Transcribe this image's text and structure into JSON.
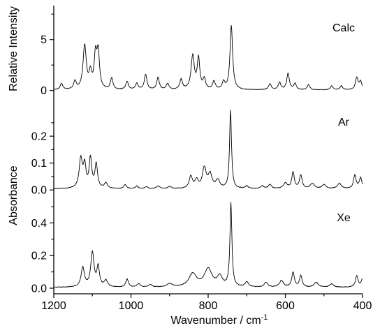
{
  "chart_data": {
    "type": "line",
    "xlabel": "Wavenumber / cm",
    "xlabel_superscript": "-1",
    "xlim": [
      1200,
      400
    ],
    "x_direction": "descending",
    "x_ticks": [
      1200,
      1000,
      800,
      600,
      400
    ],
    "grid": false,
    "panels": [
      {
        "id": "calc",
        "label": "Calc",
        "ylabel": "Relative Intensity",
        "ylim": [
          -0.5,
          8.2
        ],
        "y_ticks": [
          0,
          5
        ],
        "baseline": 0.05,
        "peaks": [
          [
            1180,
            0.6,
            4
          ],
          [
            1145,
            0.8,
            4
          ],
          [
            1120,
            4.3,
            5
          ],
          [
            1105,
            1.5,
            4
          ],
          [
            1092,
            3.2,
            4
          ],
          [
            1085,
            3.5,
            4
          ],
          [
            1050,
            1.1,
            4
          ],
          [
            1010,
            0.8,
            4
          ],
          [
            985,
            0.6,
            4
          ],
          [
            962,
            1.5,
            4
          ],
          [
            930,
            1.2,
            4
          ],
          [
            905,
            0.6,
            4
          ],
          [
            870,
            1.0,
            4
          ],
          [
            840,
            3.3,
            5
          ],
          [
            825,
            3.0,
            4
          ],
          [
            810,
            1.0,
            4
          ],
          [
            785,
            0.8,
            4
          ],
          [
            760,
            0.7,
            4
          ],
          [
            740,
            6.3,
            4
          ],
          [
            640,
            0.6,
            4
          ],
          [
            615,
            0.7,
            4
          ],
          [
            593,
            1.6,
            4
          ],
          [
            575,
            0.6,
            4
          ],
          [
            540,
            0.5,
            4
          ],
          [
            480,
            0.4,
            4
          ],
          [
            455,
            0.4,
            4
          ],
          [
            415,
            1.2,
            4
          ],
          [
            405,
            0.8,
            4
          ]
        ]
      },
      {
        "id": "ar",
        "label": "Ar",
        "ylabel": "",
        "ylim": [
          -0.015,
          0.33
        ],
        "y_ticks": [
          0.0,
          0.1,
          0.2
        ],
        "y_tick_labels": [
          "0.0",
          "0.1",
          "0.2"
        ],
        "baseline": 0.004,
        "peaks": [
          [
            1130,
            0.11,
            5
          ],
          [
            1120,
            0.08,
            4
          ],
          [
            1105,
            0.11,
            4
          ],
          [
            1090,
            0.09,
            4
          ],
          [
            1065,
            0.02,
            5
          ],
          [
            1015,
            0.015,
            4
          ],
          [
            985,
            0.01,
            4
          ],
          [
            960,
            0.008,
            4
          ],
          [
            930,
            0.01,
            5
          ],
          [
            900,
            0.008,
            5
          ],
          [
            845,
            0.045,
            5
          ],
          [
            830,
            0.03,
            5
          ],
          [
            810,
            0.075,
            6
          ],
          [
            795,
            0.05,
            6
          ],
          [
            775,
            0.03,
            6
          ],
          [
            742,
            0.29,
            3
          ],
          [
            700,
            0.01,
            4
          ],
          [
            660,
            0.01,
            5
          ],
          [
            640,
            0.015,
            5
          ],
          [
            600,
            0.02,
            6
          ],
          [
            580,
            0.06,
            4
          ],
          [
            560,
            0.05,
            4
          ],
          [
            530,
            0.02,
            6
          ],
          [
            500,
            0.015,
            6
          ],
          [
            460,
            0.02,
            6
          ],
          [
            420,
            0.05,
            4
          ],
          [
            405,
            0.04,
            4
          ]
        ]
      },
      {
        "id": "xe",
        "label": "Xe",
        "ylabel": "Absorbance",
        "ylim": [
          -0.03,
          0.56
        ],
        "y_ticks": [
          0.0,
          0.2,
          0.4
        ],
        "y_tick_labels": [
          "0.0",
          "0.2",
          "0.4"
        ],
        "baseline": 0.005,
        "peaks": [
          [
            1125,
            0.12,
            5
          ],
          [
            1100,
            0.21,
            5
          ],
          [
            1085,
            0.12,
            4
          ],
          [
            1065,
            0.04,
            5
          ],
          [
            1010,
            0.05,
            4
          ],
          [
            980,
            0.02,
            5
          ],
          [
            950,
            0.015,
            5
          ],
          [
            900,
            0.02,
            8
          ],
          [
            840,
            0.08,
            12
          ],
          [
            800,
            0.11,
            12
          ],
          [
            770,
            0.06,
            8
          ],
          [
            741,
            0.51,
            3
          ],
          [
            700,
            0.03,
            5
          ],
          [
            650,
            0.03,
            5
          ],
          [
            610,
            0.04,
            6
          ],
          [
            580,
            0.09,
            4
          ],
          [
            560,
            0.07,
            4
          ],
          [
            520,
            0.03,
            6
          ],
          [
            480,
            0.02,
            6
          ],
          [
            415,
            0.07,
            4
          ],
          [
            400,
            0.05,
            4
          ]
        ]
      }
    ]
  }
}
